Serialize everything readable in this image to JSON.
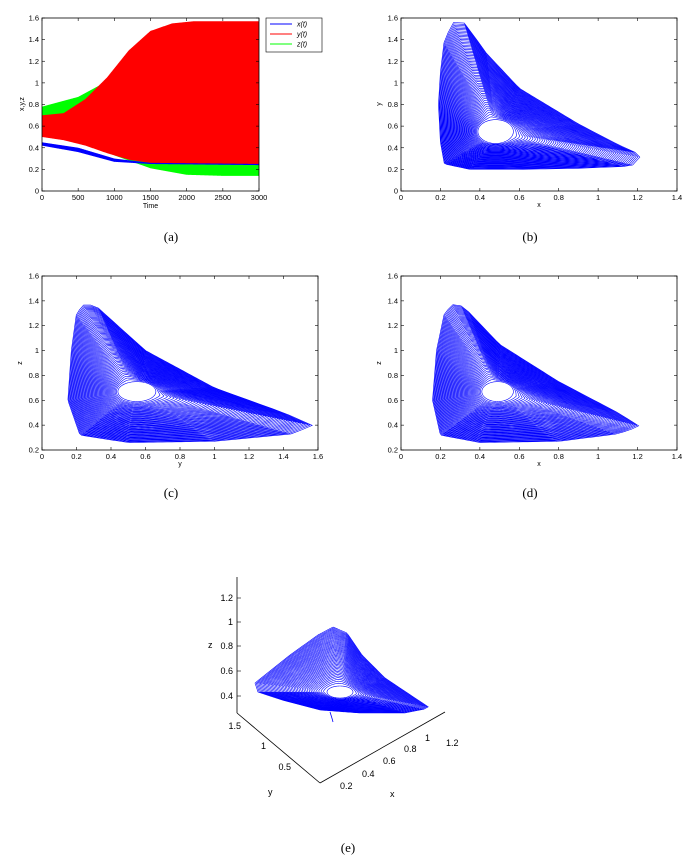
{
  "chart_data": [
    {
      "id": "a",
      "type": "line",
      "caption": "(a)",
      "xlabel": "Time",
      "ylabel": "x,y,z",
      "xlim": [
        0,
        3000
      ],
      "ylim": [
        0,
        1.6
      ],
      "xticks": [
        "0",
        "500",
        "1000",
        "1500",
        "2000",
        "2500",
        "3000"
      ],
      "yticks": [
        "0",
        "0.2",
        "0.4",
        "0.6",
        "0.8",
        "1",
        "1.2",
        "1.4",
        "1.6"
      ],
      "legend_position": "top-right",
      "series": [
        {
          "name": "x(t)",
          "color": "#0000ff",
          "upper_envelope": [
            [
              0,
              0.45
            ],
            [
              500,
              0.4
            ],
            [
              1000,
              0.3
            ],
            [
              1500,
              0.26
            ],
            [
              3000,
              0.25
            ]
          ],
          "lower_envelope": [
            [
              0,
              0.42
            ],
            [
              500,
              0.36
            ],
            [
              1000,
              0.27
            ],
            [
              1500,
              0.25
            ],
            [
              3000,
              0.24
            ]
          ]
        },
        {
          "name": "y(t)",
          "color": "#ff0000",
          "upper_envelope": [
            [
              0,
              0.7
            ],
            [
              300,
              0.72
            ],
            [
              600,
              0.85
            ],
            [
              900,
              1.05
            ],
            [
              1200,
              1.3
            ],
            [
              1500,
              1.48
            ],
            [
              1800,
              1.55
            ],
            [
              2100,
              1.57
            ],
            [
              3000,
              1.57
            ]
          ],
          "lower_envelope": [
            [
              0,
              0.5
            ],
            [
              300,
              0.47
            ],
            [
              600,
              0.42
            ],
            [
              900,
              0.35
            ],
            [
              1200,
              0.29
            ],
            [
              1500,
              0.26
            ],
            [
              1800,
              0.25
            ],
            [
              3000,
              0.25
            ]
          ]
        },
        {
          "name": "z(t)",
          "color": "#00ff00",
          "upper_envelope": [
            [
              0,
              0.78
            ],
            [
              500,
              0.87
            ],
            [
              1000,
              1.05
            ],
            [
              1500,
              1.27
            ],
            [
              2000,
              1.37
            ],
            [
              2500,
              1.39
            ],
            [
              3000,
              1.39
            ]
          ],
          "lower_envelope": [
            [
              0,
              0.58
            ],
            [
              500,
              0.5
            ],
            [
              1000,
              0.33
            ],
            [
              1500,
              0.21
            ],
            [
              2000,
              0.15
            ],
            [
              2500,
              0.14
            ],
            [
              3000,
              0.14
            ]
          ]
        }
      ]
    },
    {
      "id": "b",
      "type": "line",
      "caption": "(b)",
      "xlabel": "x",
      "ylabel": "y",
      "xlim": [
        0,
        1.4
      ],
      "ylim": [
        0,
        1.6
      ],
      "xticks": [
        "0",
        "0.2",
        "0.4",
        "0.6",
        "0.8",
        "1",
        "1.2",
        "1.4"
      ],
      "yticks": [
        "0",
        "0.2",
        "0.4",
        "0.6",
        "0.8",
        "1",
        "1.2",
        "1.4",
        "1.6"
      ],
      "color": "#0000ff",
      "outer_boundary": [
        [
          0.27,
          1.57
        ],
        [
          0.33,
          1.55
        ],
        [
          0.42,
          1.3
        ],
        [
          0.6,
          0.95
        ],
        [
          0.9,
          0.62
        ],
        [
          1.1,
          0.43
        ],
        [
          1.22,
          0.33
        ],
        [
          1.17,
          0.23
        ],
        [
          0.9,
          0.21
        ],
        [
          0.6,
          0.2
        ],
        [
          0.35,
          0.2
        ],
        [
          0.22,
          0.25
        ],
        [
          0.2,
          0.45
        ],
        [
          0.19,
          0.8
        ],
        [
          0.2,
          1.1
        ],
        [
          0.22,
          1.4
        ]
      ],
      "inner_hole": {
        "center": [
          0.48,
          0.55
        ],
        "semi_axes": [
          0.09,
          0.11
        ]
      }
    },
    {
      "id": "c",
      "type": "line",
      "caption": "(c)",
      "xlabel": "y",
      "ylabel": "z",
      "xlim": [
        0,
        1.6
      ],
      "ylim": [
        0.2,
        1.6
      ],
      "xticks": [
        "0",
        "0.2",
        "0.4",
        "0.6",
        "0.8",
        "1",
        "1.2",
        "1.4",
        "1.6"
      ],
      "yticks": [
        "0.2",
        "0.4",
        "0.6",
        "0.8",
        "1",
        "1.2",
        "1.4",
        "1.6"
      ],
      "color": "#0000ff",
      "outer_boundary": [
        [
          0.25,
          1.38
        ],
        [
          0.32,
          1.35
        ],
        [
          0.6,
          1.0
        ],
        [
          1.0,
          0.7
        ],
        [
          1.4,
          0.5
        ],
        [
          1.57,
          0.4
        ],
        [
          1.45,
          0.33
        ],
        [
          1.0,
          0.27
        ],
        [
          0.5,
          0.26
        ],
        [
          0.22,
          0.32
        ],
        [
          0.15,
          0.6
        ],
        [
          0.17,
          1.0
        ],
        [
          0.2,
          1.3
        ]
      ],
      "inner_hole": {
        "center": [
          0.55,
          0.67
        ],
        "semi_axes": [
          0.11,
          0.08
        ]
      }
    },
    {
      "id": "d",
      "type": "line",
      "caption": "(d)",
      "xlabel": "x",
      "ylabel": "z",
      "xlim": [
        0,
        1.4
      ],
      "ylim": [
        0.2,
        1.6
      ],
      "xticks": [
        "0",
        "0.2",
        "0.4",
        "0.6",
        "0.8",
        "1",
        "1.2",
        "1.4"
      ],
      "yticks": [
        "0.2",
        "0.4",
        "0.6",
        "0.8",
        "1",
        "1.2",
        "1.4",
        "1.6"
      ],
      "color": "#0000ff",
      "outer_boundary": [
        [
          0.27,
          1.38
        ],
        [
          0.32,
          1.35
        ],
        [
          0.5,
          1.05
        ],
        [
          0.8,
          0.75
        ],
        [
          1.1,
          0.5
        ],
        [
          1.21,
          0.39
        ],
        [
          1.1,
          0.33
        ],
        [
          0.8,
          0.27
        ],
        [
          0.4,
          0.26
        ],
        [
          0.2,
          0.32
        ],
        [
          0.16,
          0.6
        ],
        [
          0.18,
          1.0
        ],
        [
          0.22,
          1.3
        ]
      ],
      "inner_hole": {
        "center": [
          0.49,
          0.67
        ],
        "semi_axes": [
          0.08,
          0.08
        ]
      }
    },
    {
      "id": "e",
      "type": "line",
      "caption": "(e)",
      "view": "3d",
      "xlabel": "x",
      "ylabel": "y",
      "zlabel": "z",
      "xticks": [
        "0.2",
        "0.4",
        "0.6",
        "0.8",
        "1",
        "1.2"
      ],
      "yticks": [
        "0.5",
        "1",
        "1.5"
      ],
      "zticks": [
        "0.4",
        "0.6",
        "0.8",
        "1",
        "1.2"
      ],
      "color": "#0000ff"
    }
  ]
}
